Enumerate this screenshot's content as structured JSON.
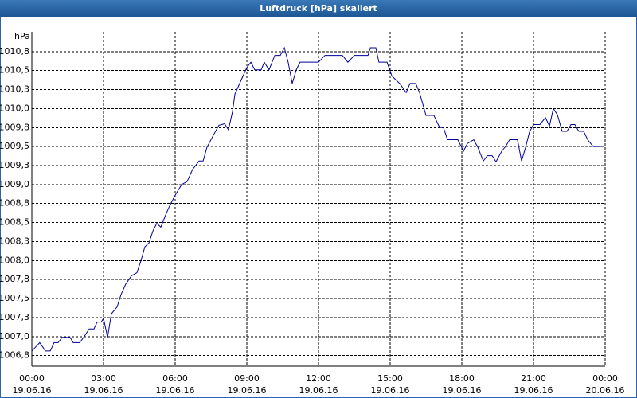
{
  "chart_data": {
    "type": "line",
    "title": "Luftdruck [hPa] skaliert",
    "y_unit": "hPa",
    "xlim": [
      0,
      24
    ],
    "ylim": [
      1006.61,
      1011.01
    ],
    "xticks": [
      {
        "value": 0,
        "label": "00:00"
      },
      {
        "value": 3,
        "label": "03:00"
      },
      {
        "value": 6,
        "label": "06:00"
      },
      {
        "value": 9,
        "label": "09:00"
      },
      {
        "value": 12,
        "label": "12:00"
      },
      {
        "value": 15,
        "label": "15:00"
      },
      {
        "value": 18,
        "label": "18:00"
      },
      {
        "value": 21,
        "label": "21:00"
      },
      {
        "value": 24,
        "label": "00:00"
      }
    ],
    "xtick_dates": [
      "19.06.16",
      "19.06.16",
      "19.06.16",
      "19.06.16",
      "19.06.16",
      "19.06.16",
      "19.06.16",
      "19.06.16",
      "20.06.16"
    ],
    "yticks": [
      {
        "value": 1006.75,
        "label": "1006,8"
      },
      {
        "value": 1007,
        "label": "1007,0"
      },
      {
        "value": 1007.25,
        "label": "1007,3"
      },
      {
        "value": 1007.5,
        "label": "1007,5"
      },
      {
        "value": 1007.75,
        "label": "1007,8"
      },
      {
        "value": 1008,
        "label": "1008,0"
      },
      {
        "value": 1008.25,
        "label": "1008,3"
      },
      {
        "value": 1008.5,
        "label": "1008,5"
      },
      {
        "value": 1008.75,
        "label": "1008,8"
      },
      {
        "value": 1009,
        "label": "1009,0"
      },
      {
        "value": 1009.25,
        "label": "1009,3"
      },
      {
        "value": 1009.5,
        "label": "1009,5"
      },
      {
        "value": 1009.75,
        "label": "1009,8"
      },
      {
        "value": 1010,
        "label": "1010,0"
      },
      {
        "value": 1010.25,
        "label": "1010,3"
      },
      {
        "value": 1010.5,
        "label": "1010,5"
      },
      {
        "value": 1010.75,
        "label": "1010,8"
      }
    ],
    "grid": true,
    "x": [
      0,
      0.33,
      0.57,
      0.77,
      0.93,
      1.1,
      1.27,
      1.6,
      1.73,
      2,
      2.17,
      2.4,
      2.6,
      2.73,
      2.9,
      3,
      3.17,
      3.33,
      3.57,
      3.73,
      3.93,
      4.17,
      4.4,
      4.57,
      4.73,
      4.9,
      5.07,
      5.23,
      5.4,
      5.6,
      5.77,
      6,
      6.27,
      6.5,
      6.73,
      7,
      7.17,
      7.33,
      7.6,
      7.83,
      8.07,
      8.23,
      8.4,
      8.5,
      8.77,
      9,
      9.17,
      9.33,
      9.6,
      9.73,
      9.93,
      10.17,
      10.4,
      10.57,
      10.73,
      10.9,
      11.07,
      11.23,
      12,
      12.27,
      13,
      13.23,
      13.5,
      14.07,
      14.17,
      14.4,
      14.53,
      14.87,
      15.07,
      15.23,
      15.4,
      15.67,
      15.83,
      16.07,
      16.23,
      16.5,
      16.83,
      17.07,
      17.23,
      17.4,
      17.83,
      18.07,
      18.23,
      18.5,
      18.67,
      18.9,
      19.07,
      19.27,
      19.43,
      19.67,
      19.83,
      20,
      20.33,
      20.5,
      20.67,
      20.83,
      21,
      21.27,
      21.5,
      21.67,
      21.83,
      22,
      22.2,
      22.4,
      22.57,
      22.73,
      22.9,
      23.1,
      23.27,
      23.5,
      23.83
    ],
    "series": [
      {
        "name": "Luftdruck",
        "color": "#000099",
        "values": [
          1006.81,
          1006.92,
          1006.81,
          1006.81,
          1006.92,
          1006.92,
          1006.99,
          1006.99,
          1006.92,
          1006.92,
          1006.99,
          1007.1,
          1007.1,
          1007.19,
          1007.19,
          1007.24,
          1006.99,
          1007.3,
          1007.39,
          1007.55,
          1007.69,
          1007.8,
          1007.84,
          1008.0,
          1008.18,
          1008.23,
          1008.39,
          1008.49,
          1008.44,
          1008.6,
          1008.72,
          1008.86,
          1009.0,
          1009.04,
          1009.2,
          1009.31,
          1009.31,
          1009.49,
          1009.65,
          1009.78,
          1009.8,
          1009.72,
          1009.96,
          1010.19,
          1010.38,
          1010.54,
          1010.61,
          1010.51,
          1010.51,
          1010.61,
          1010.51,
          1010.7,
          1010.7,
          1010.8,
          1010.61,
          1010.33,
          1010.51,
          1010.61,
          1010.61,
          1010.7,
          1010.7,
          1010.61,
          1010.7,
          1010.7,
          1010.8,
          1010.8,
          1010.61,
          1010.61,
          1010.43,
          1010.38,
          1010.33,
          1010.21,
          1010.33,
          1010.33,
          1010.21,
          1009.91,
          1009.91,
          1009.75,
          1009.75,
          1009.59,
          1009.59,
          1009.44,
          1009.54,
          1009.59,
          1009.49,
          1009.31,
          1009.38,
          1009.38,
          1009.3,
          1009.44,
          1009.5,
          1009.59,
          1009.59,
          1009.31,
          1009.49,
          1009.69,
          1009.79,
          1009.79,
          1009.88,
          1009.77,
          1010.0,
          1009.92,
          1009.7,
          1009.7,
          1009.79,
          1009.79,
          1009.7,
          1009.7,
          1009.59,
          1009.5,
          1009.5
        ]
      }
    ]
  }
}
